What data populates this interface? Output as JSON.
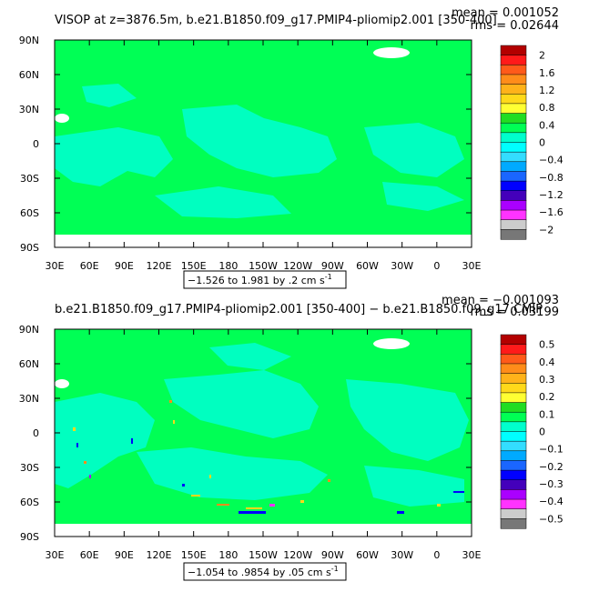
{
  "colors": {
    "background": "#00ff55",
    "negative_small": "#00ffcc",
    "land": "#ffffff",
    "axis": "#000000"
  },
  "chart_data": [
    {
      "type": "heatmap",
      "title_left": "VISOP at z=3876.5m, b.e21.B1850.f09_g17.PMIP4-pliomip2.001 [350-400]",
      "stats": {
        "mean": "mean = 0.001052",
        "rms": "rms = 0.02644"
      },
      "x_ticks": [
        "30E",
        "60E",
        "90E",
        "120E",
        "150E",
        "180",
        "150W",
        "120W",
        "90W",
        "60W",
        "30W",
        "0",
        "30E"
      ],
      "y_ticks": [
        "90N",
        "60N",
        "30N",
        "0",
        "30S",
        "60S",
        "90S"
      ],
      "contour_info": "−1.526 to 1.981 by .2 cm s",
      "contour_info_sup": "-1",
      "colorbar": {
        "labels": [
          "2",
          "1.6",
          "1.2",
          "0.8",
          "0.4",
          "0",
          "−0.4",
          "−0.8",
          "−1.2",
          "−1.6",
          "−2"
        ],
        "colors": [
          "#b30000",
          "#ff1a1a",
          "#ff5a1a",
          "#ff8c1a",
          "#ffb21a",
          "#ffd91a",
          "#ffff33",
          "#22dd22",
          "#00ff55",
          "#00ffcc",
          "#00ffff",
          "#33ddff",
          "#00aaff",
          "#1a66ff",
          "#0000ff",
          "#4400bb",
          "#aa00ff",
          "#ff33ff",
          "#cccccc",
          "#777777"
        ]
      }
    },
    {
      "type": "heatmap",
      "title_left": "b.e21.B1850.f09_g17.PMIP4-pliomip2.001 [350-400] − b.e21.B1850.f09_g17.CMIP",
      "stats": {
        "mean": "mean = −0.001093",
        "rms": "rms = 0.03199"
      },
      "x_ticks": [
        "30E",
        "60E",
        "90E",
        "120E",
        "150E",
        "180",
        "150W",
        "120W",
        "90W",
        "60W",
        "30W",
        "0",
        "30E"
      ],
      "y_ticks": [
        "90N",
        "60N",
        "30N",
        "0",
        "30S",
        "60S",
        "90S"
      ],
      "contour_info": "−1.054 to .9854 by .05 cm s",
      "contour_info_sup": "-1",
      "colorbar": {
        "labels": [
          "0.5",
          "0.4",
          "0.3",
          "0.2",
          "0.1",
          "0",
          "−0.1",
          "−0.2",
          "−0.3",
          "−0.4",
          "−0.5"
        ],
        "colors": [
          "#b30000",
          "#ff1a1a",
          "#ff5a1a",
          "#ff8c1a",
          "#ffb21a",
          "#ffd91a",
          "#ffff33",
          "#22dd22",
          "#00ff55",
          "#00ffcc",
          "#00ffff",
          "#33ddff",
          "#00aaff",
          "#1a66ff",
          "#0000ff",
          "#4400bb",
          "#aa00ff",
          "#ff33ff",
          "#cccccc",
          "#777777"
        ]
      }
    }
  ]
}
